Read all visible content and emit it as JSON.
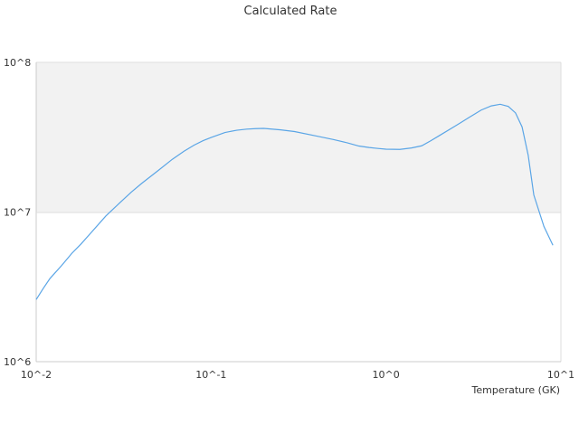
{
  "chart_data": {
    "type": "line",
    "title": "Calculated Rate",
    "xlabel": "Temperature (GK)",
    "ylabel": "",
    "xscale": "log",
    "yscale": "log",
    "xlim": [
      0.01,
      10
    ],
    "ylim": [
      1000000,
      100000000
    ],
    "grid": false,
    "legend": "none",
    "x_ticks": [
      {
        "value": 0.01,
        "label": "10^-2"
      },
      {
        "value": 0.1,
        "label": "10^-1"
      },
      {
        "value": 1,
        "label": "10^0"
      },
      {
        "value": 10,
        "label": "10^1"
      }
    ],
    "y_ticks": [
      {
        "value": 1000000,
        "label": "10^6"
      },
      {
        "value": 10000000,
        "label": "10^7"
      },
      {
        "value": 100000000,
        "label": "10^8"
      }
    ],
    "shaded_band": {
      "y_from": 10000000,
      "y_to": 100000000,
      "color": "#f2f2f2"
    },
    "colors": {
      "line": "#5aa5e6",
      "band": "#f2f2f2",
      "axis": "#cccccc",
      "text": "#333333"
    },
    "series": [
      {
        "x": [
          0.01,
          0.011,
          0.012,
          0.014,
          0.016,
          0.018,
          0.02,
          0.025,
          0.03,
          0.035,
          0.04,
          0.05,
          0.06,
          0.07,
          0.08,
          0.09,
          0.1,
          0.12,
          0.14,
          0.16,
          0.18,
          0.2,
          0.25,
          0.3,
          0.4,
          0.5,
          0.6,
          0.7,
          0.8,
          0.9,
          1.0,
          1.2,
          1.4,
          1.6,
          1.8,
          2.0,
          2.5,
          3.0,
          3.5,
          4.0,
          4.5,
          5.0,
          5.5,
          6.0,
          6.5,
          7.0,
          8.0,
          9.0
        ],
        "values": [
          2600000,
          3100000,
          3600000,
          4400000,
          5300000,
          6100000,
          7000000,
          9400000,
          11500000,
          13600000,
          15500000,
          19000000,
          22500000,
          25500000,
          28000000,
          30000000,
          31500000,
          34000000,
          35200000,
          35800000,
          36100000,
          36200000,
          35400000,
          34500000,
          32200000,
          30500000,
          29000000,
          27600000,
          27000000,
          26600000,
          26300000,
          26200000,
          26800000,
          27700000,
          29900000,
          32200000,
          37700000,
          43000000,
          48000000,
          51200000,
          52500000,
          50800000,
          46000000,
          37000000,
          24000000,
          13000000,
          8000000,
          6000000
        ]
      }
    ]
  }
}
